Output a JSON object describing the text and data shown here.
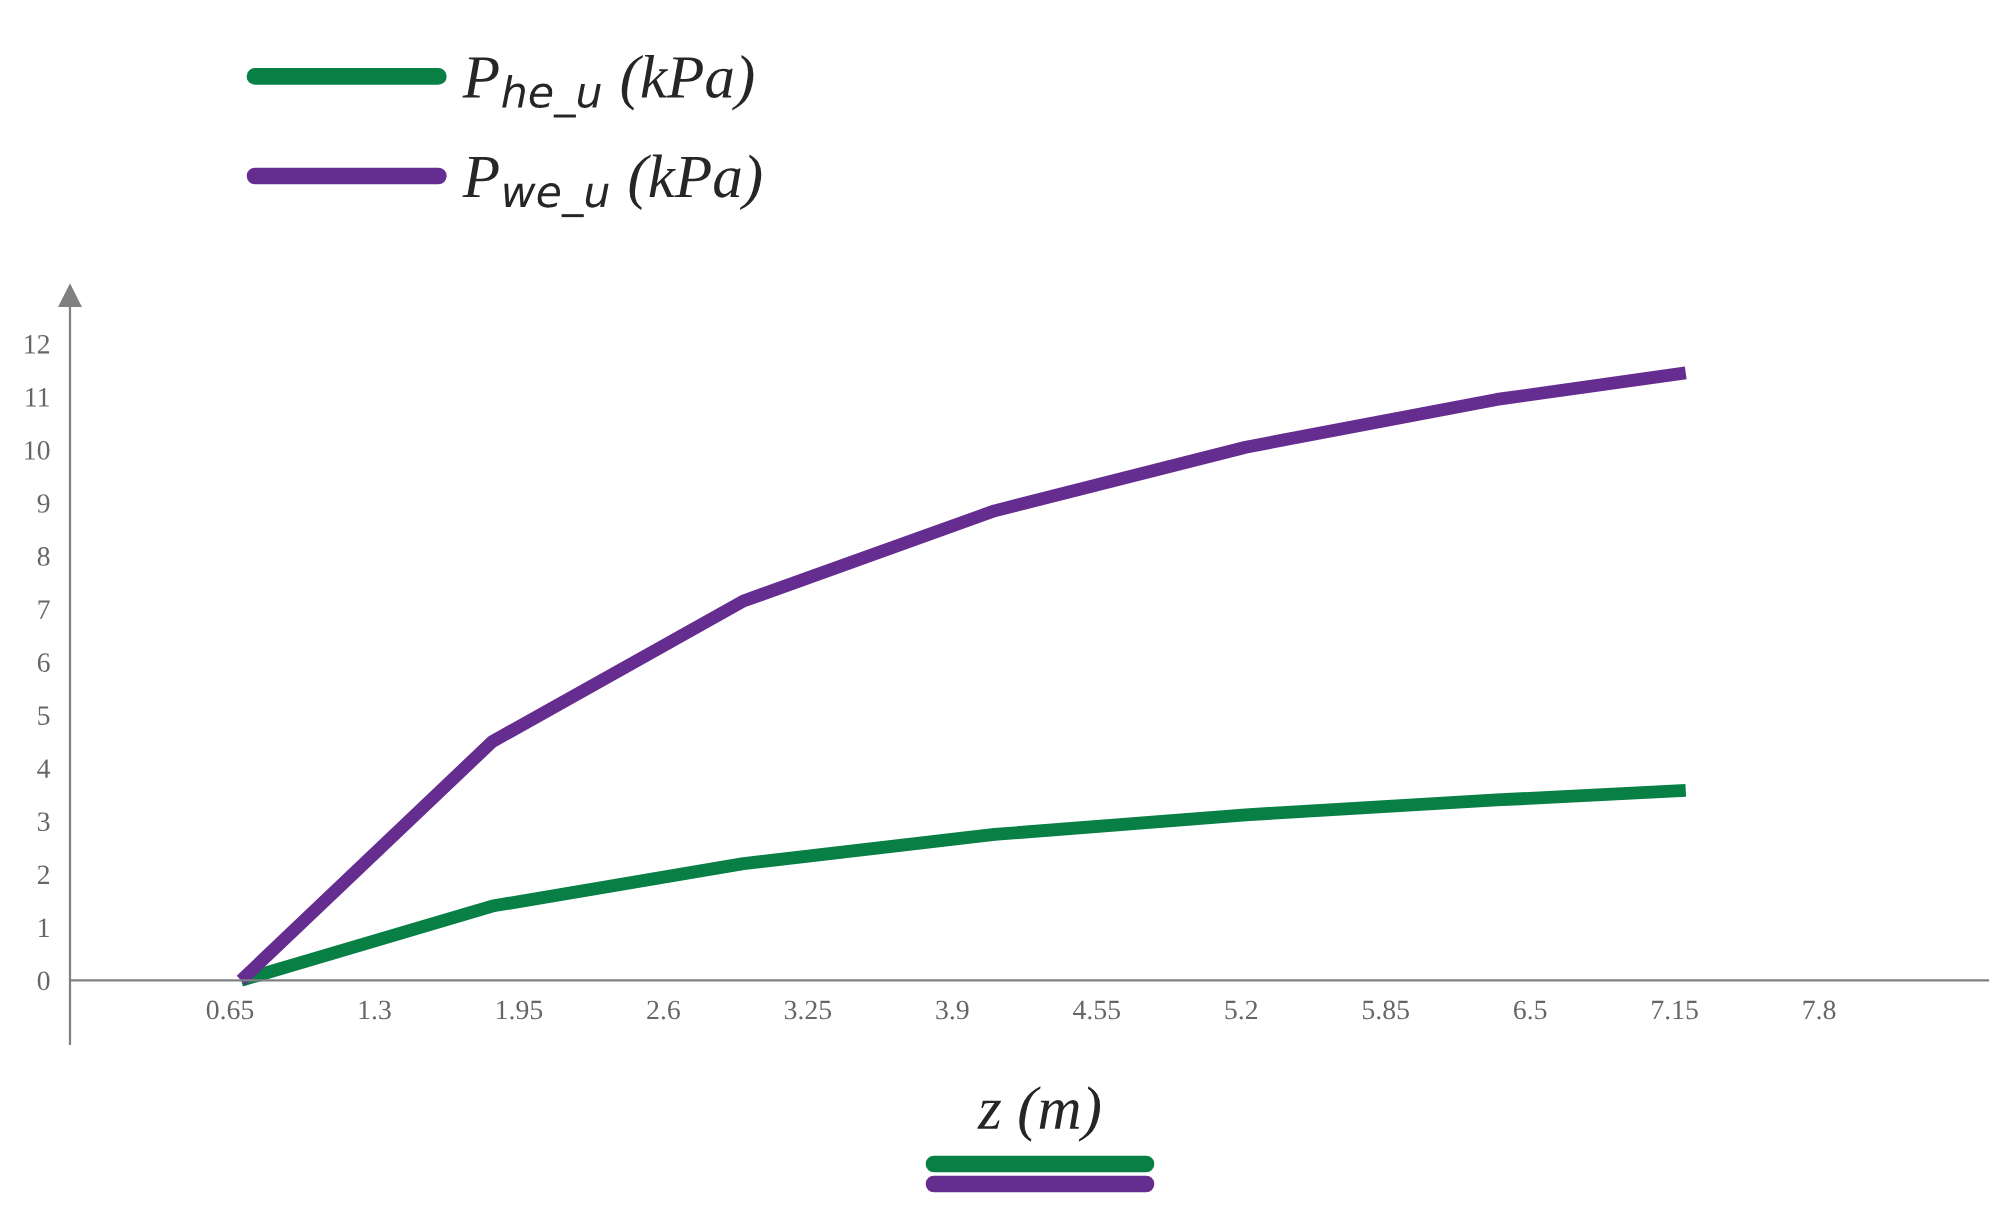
{
  "chart_data": {
    "type": "line",
    "xlabel": "z (m)",
    "x": [
      0.7,
      1.83,
      2.96,
      4.09,
      5.22,
      6.35,
      7.2
    ],
    "series": [
      {
        "name": "P$_{he_u}$ (kPa)",
        "color": "#087f45",
        "values": [
          0,
          1.4,
          2.2,
          2.75,
          3.12,
          3.4,
          3.58
        ]
      },
      {
        "name": "P$_{we_u}$ (kPa)",
        "color": "#662d91",
        "values": [
          0,
          4.5,
          7.15,
          8.85,
          10.05,
          10.95,
          11.45
        ]
      }
    ],
    "xlim": [
      -0.07,
      8.56
    ],
    "ylim": [
      -1.2,
      12.9
    ],
    "xticks": [
      0.65,
      1.3,
      1.95,
      2.6,
      3.25,
      3.9,
      4.55,
      5.2,
      5.85,
      6.5,
      7.15,
      7.8
    ],
    "yticks": [
      0,
      1,
      2,
      3,
      4,
      5,
      6,
      7,
      8,
      9,
      10,
      11,
      12
    ],
    "legend": "top left",
    "grid": false,
    "marker": "none",
    "line_style": "solid"
  }
}
